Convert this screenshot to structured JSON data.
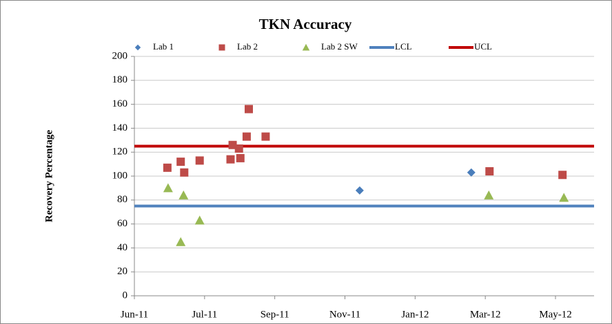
{
  "chart_data": {
    "type": "scatter",
    "title": "TKN Accuracy",
    "y_label": "Recovery Percentage",
    "xlim": [
      0,
      6.55
    ],
    "xticks": [
      {
        "value": 0,
        "label": "Jun-11"
      },
      {
        "value": 1,
        "label": "Jul-11"
      },
      {
        "value": 2,
        "label": "Sep-11"
      },
      {
        "value": 3,
        "label": "Nov-11"
      },
      {
        "value": 4,
        "label": "Jan-12"
      },
      {
        "value": 5,
        "label": "Mar-12"
      },
      {
        "value": 6,
        "label": "May-12"
      }
    ],
    "ylim": [
      0,
      200
    ],
    "yticks": [
      0,
      20,
      40,
      60,
      80,
      100,
      120,
      140,
      160,
      180,
      200
    ],
    "grid": true,
    "series": [
      {
        "name": "Lab 1",
        "color": "#4a7ebb",
        "marker": "diamond",
        "x": [
          3.21,
          4.8
        ],
        "values": [
          88,
          103
        ]
      },
      {
        "name": "Lab 2",
        "color": "#be4b48",
        "marker": "square",
        "x": [
          0.47,
          0.66,
          0.71,
          0.93,
          1.37,
          1.4,
          1.49,
          1.51,
          1.6,
          1.63,
          1.87,
          5.06,
          6.1
        ],
        "values": [
          107,
          112,
          103,
          113,
          114,
          126,
          123,
          115,
          133,
          156,
          133,
          104,
          101
        ]
      },
      {
        "name": "Lab 2 SW",
        "color": "#98b954",
        "marker": "triangle",
        "x": [
          0.48,
          0.66,
          0.7,
          0.93,
          5.05,
          6.12
        ],
        "values": [
          90,
          45,
          84,
          63,
          84,
          82
        ]
      }
    ],
    "reference_lines": [
      {
        "name": "LCL",
        "color": "#4f81bd",
        "value": 75
      },
      {
        "name": "UCL",
        "color": "#c00000",
        "value": 125
      }
    ]
  }
}
